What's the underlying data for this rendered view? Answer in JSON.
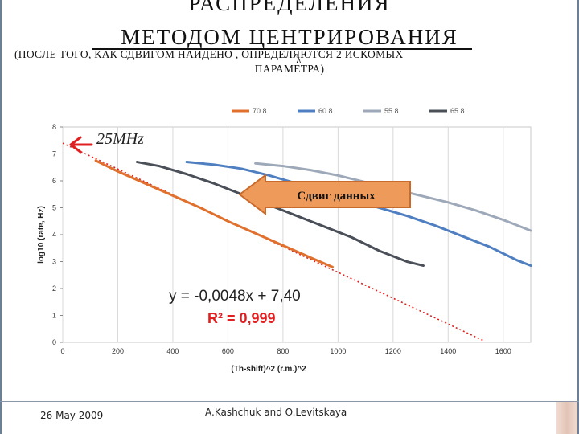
{
  "slide": {
    "title_line1": "РАСПРЕДЕЛЕНИЯ",
    "title_line2": "МЕТОДОМ ЦЕНТРИРОВАНИЯ",
    "subtitle_line1": "(ПОСЛЕ ТОГО, КАК СДВИГОМ НАЙДЕНО      , ОПРЕДЕЛЯЮТСЯ 2 ИСКОМЫХ",
    "subtitle_line2": "ПАРАМЕТРА)",
    "subtitle_symbol": "λ",
    "footer_date": "26 May 2009",
    "footer_author": "A.Kashchuk and O.Levitskaya"
  },
  "annotations": {
    "rate_label": "25MHz",
    "shift_callout": "Сдвиг данных",
    "equation": "y = -0,0048x + 7,40",
    "r_squared": "R² = 0,999"
  },
  "colors": {
    "series_70_8": "#e0702e",
    "series_60_8": "#4f7fc0",
    "series_55_8": "#9da8b8",
    "series_65_8": "#4a4f58",
    "fit_line": "#e02020",
    "arrow": "#e02020",
    "callout_fill": "#ee9a5a",
    "callout_stroke": "#c86a2c",
    "r2_text": "#e02020"
  },
  "chart_data": {
    "type": "line",
    "xlabel": "(Th-shift)^2 (r.m.)^2",
    "ylabel": "log10 (rate, Hz)",
    "xlim": [
      0,
      1700
    ],
    "ylim": [
      0,
      8
    ],
    "xticks": [
      0,
      200,
      400,
      600,
      800,
      1000,
      1200,
      1400,
      1600
    ],
    "yticks": [
      0,
      1,
      2,
      3,
      4,
      5,
      6,
      7,
      8
    ],
    "grid": "vertical",
    "legend_position": "top",
    "series": [
      {
        "name": "70.8",
        "color_key": "series_70_8",
        "x": [
          120,
          200,
          300,
          400,
          500,
          600,
          700,
          800,
          900,
          980
        ],
        "y": [
          6.75,
          6.35,
          5.9,
          5.45,
          5.0,
          4.5,
          4.05,
          3.6,
          3.15,
          2.8
        ]
      },
      {
        "name": "60.8",
        "color_key": "series_60_8",
        "x": [
          450,
          550,
          650,
          750,
          850,
          950,
          1050,
          1150,
          1250,
          1350,
          1450,
          1550,
          1650,
          1700
        ],
        "y": [
          6.7,
          6.6,
          6.45,
          6.2,
          5.9,
          5.6,
          5.3,
          5.0,
          4.7,
          4.35,
          3.95,
          3.55,
          3.05,
          2.85
        ]
      },
      {
        "name": "55.8",
        "color_key": "series_55_8",
        "x": [
          700,
          800,
          900,
          1000,
          1100,
          1200,
          1300,
          1400,
          1500,
          1600,
          1700
        ],
        "y": [
          6.65,
          6.55,
          6.4,
          6.2,
          5.95,
          5.7,
          5.45,
          5.2,
          4.9,
          4.55,
          4.15
        ]
      },
      {
        "name": "65.8",
        "color_key": "series_65_8",
        "x": [
          270,
          350,
          450,
          550,
          650,
          750,
          850,
          950,
          1050,
          1150,
          1250,
          1310
        ],
        "y": [
          6.7,
          6.55,
          6.25,
          5.9,
          5.5,
          5.1,
          4.7,
          4.3,
          3.9,
          3.4,
          3.0,
          2.85
        ]
      }
    ],
    "fit": {
      "slope": -0.0048,
      "intercept": 7.4,
      "x_range": [
        0,
        1530
      ]
    }
  }
}
